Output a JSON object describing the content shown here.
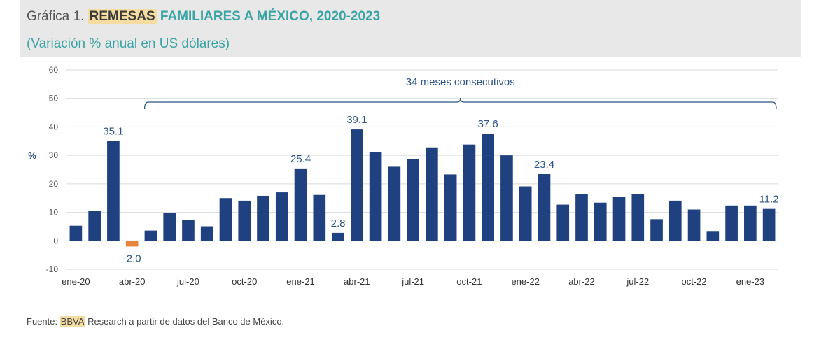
{
  "header": {
    "prefix": "Gráfica 1.",
    "highlight": "REMESAS",
    "title_rest": "FAMILIARES A MÉXICO, 2020-2023",
    "subtitle": "(Variación % anual en US dólares)"
  },
  "source": {
    "prefix": "Fuente:",
    "highlight": "BBVA",
    "rest": "Research a partir de datos del Banco de México."
  },
  "colors": {
    "positive": "#1f4180",
    "negative": "#e8853d",
    "grid": "#d9d9d9",
    "axis_text": "#595959",
    "label_text": "#2e5486"
  },
  "chart_data": {
    "type": "bar",
    "ylabel": "%",
    "ylim": [
      -10,
      60
    ],
    "yticks": [
      -10,
      0,
      10,
      20,
      30,
      40,
      50,
      60
    ],
    "grid": true,
    "x_tick_labels": [
      {
        "index": 0,
        "label": "ene-20"
      },
      {
        "index": 3,
        "label": "abr-20"
      },
      {
        "index": 6,
        "label": "jul-20"
      },
      {
        "index": 9,
        "label": "oct-20"
      },
      {
        "index": 12,
        "label": "ene-21"
      },
      {
        "index": 15,
        "label": "abr-21"
      },
      {
        "index": 18,
        "label": "jul-21"
      },
      {
        "index": 21,
        "label": "oct-21"
      },
      {
        "index": 24,
        "label": "ene-22"
      },
      {
        "index": 27,
        "label": "abr-22"
      },
      {
        "index": 30,
        "label": "jul-22"
      },
      {
        "index": 33,
        "label": "oct-22"
      },
      {
        "index": 36,
        "label": "ene-23"
      }
    ],
    "values": [
      5.3,
      10.5,
      35.1,
      -2.0,
      3.6,
      9.8,
      7.2,
      5.1,
      15.0,
      14.1,
      15.8,
      17.0,
      25.4,
      16.1,
      2.8,
      39.1,
      31.2,
      26.0,
      28.6,
      32.8,
      23.3,
      33.8,
      37.6,
      30.0,
      19.1,
      23.4,
      12.7,
      16.3,
      13.4,
      15.3,
      16.5,
      7.6,
      14.1,
      11.0,
      3.2,
      12.4,
      12.4,
      11.2
    ],
    "data_labels": [
      {
        "index": 2,
        "text": "35.1"
      },
      {
        "index": 3,
        "text": "-2.0"
      },
      {
        "index": 12,
        "text": "25.4"
      },
      {
        "index": 14,
        "text": "2.8"
      },
      {
        "index": 15,
        "text": "39.1"
      },
      {
        "index": 22,
        "text": "37.6"
      },
      {
        "index": 25,
        "text": "23.4"
      },
      {
        "index": 37,
        "text": "11.2"
      }
    ],
    "annotation": {
      "text": "34 meses consecutivos",
      "from_index": 4,
      "to_index": 37
    }
  }
}
